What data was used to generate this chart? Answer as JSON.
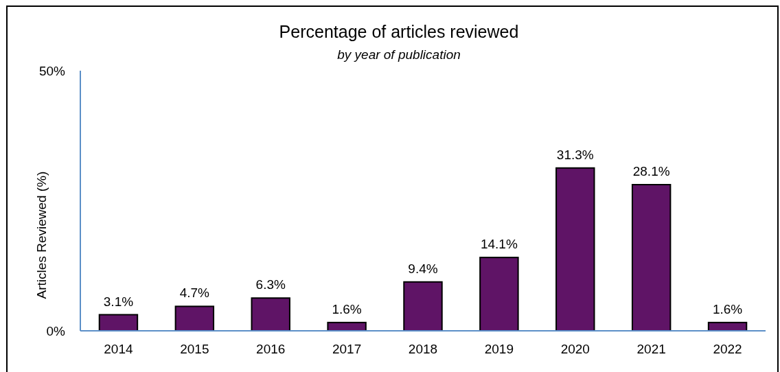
{
  "chart_data": {
    "type": "bar",
    "title": "Percentage of articles reviewed",
    "subtitle": "by year of publication",
    "ylabel": "Articles Reviewed (%)",
    "categories": [
      "2014",
      "2015",
      "2016",
      "2017",
      "2018",
      "2019",
      "2020",
      "2021",
      "2022"
    ],
    "values": [
      3.1,
      4.7,
      6.3,
      1.6,
      9.4,
      14.1,
      31.3,
      28.1,
      1.6
    ],
    "value_labels": [
      "3.1%",
      "4.7%",
      "6.3%",
      "1.6%",
      "9.4%",
      "14.1%",
      "31.3%",
      "28.1%",
      "1.6%"
    ],
    "color": "#5f1466",
    "ylim": [
      0,
      50
    ],
    "yticks": [
      {
        "value": 0,
        "label": "0%"
      },
      {
        "value": 50,
        "label": "50%"
      }
    ],
    "grid": false
  }
}
